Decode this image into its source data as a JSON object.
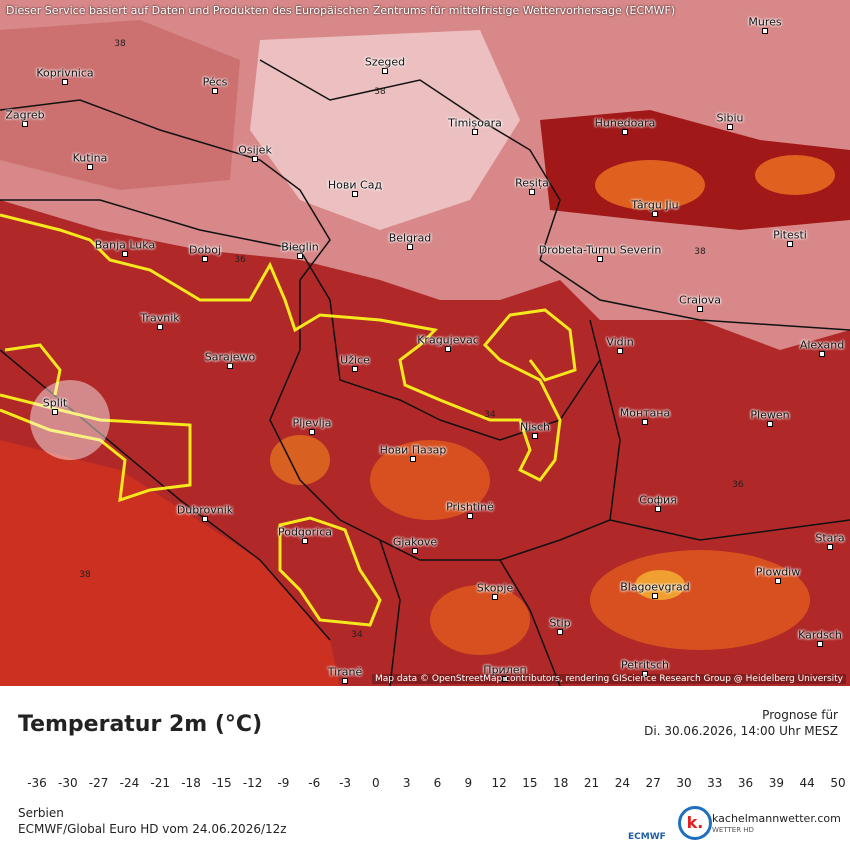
{
  "notice": "Dieser Service basiert auf Daten und Produkten des Europäischen Zentrums für mittelfristige Wettervorhersage (ECMWF)",
  "cities": [
    "Koprivnica",
    "Pécs",
    "Szeged",
    "Mures",
    "Zagreb",
    "Kutina",
    "Osijek",
    "Timișoara",
    "Hunedoara",
    "Sibiu",
    "Нови Сад",
    "Reșița",
    "Târgu Jiu",
    "Banja Luka",
    "Doboj",
    "Bieglin",
    "Belgrad",
    "Drobeta-Turnu Severin",
    "Pitesti",
    "Craiova",
    "Travnik",
    "Kragujevac",
    "Vidin",
    "Sarajewo",
    "Užice",
    "Alexand",
    "Split",
    "Pljevlja",
    "Nisch",
    "Монтана",
    "Plewen",
    "Нови Пазар",
    "София",
    "Dubrovnik",
    "Prishtinë",
    "Podgorica",
    "Gjakove",
    "Plowdiw",
    "Skopje",
    "Blagoevgrad",
    "Stip",
    "Kardsch",
    "Tiranë",
    "Прилеп",
    "Petritsch",
    "Stara"
  ],
  "contours": [
    "38",
    "38",
    "36",
    "34",
    "38",
    "36",
    "38",
    "34"
  ],
  "attribution": "Map data © OpenStreetMap contributors, rendering GIScience Research Group @ Heidelberg University",
  "legend": {
    "title": "Temperatur 2m (°C)",
    "forecast_label": "Prognose für",
    "forecast_time": "Di. 30.06.2026, 14:00 Uhr MESZ",
    "ticks": [
      -36,
      -30,
      -27,
      -24,
      -21,
      -18,
      -15,
      -12,
      -9,
      -6,
      -3,
      0,
      3,
      6,
      9,
      12,
      15,
      18,
      21,
      24,
      27,
      30,
      33,
      36,
      39,
      44,
      50
    ],
    "region": "Serbien",
    "model": "ECMWF/Global Euro HD vom  24.06.2026/12z"
  },
  "logos": {
    "ecmwf": "ECMWF",
    "k": "k.",
    "site": "kachelmannwetter.com",
    "sub": "WETTER HD"
  }
}
